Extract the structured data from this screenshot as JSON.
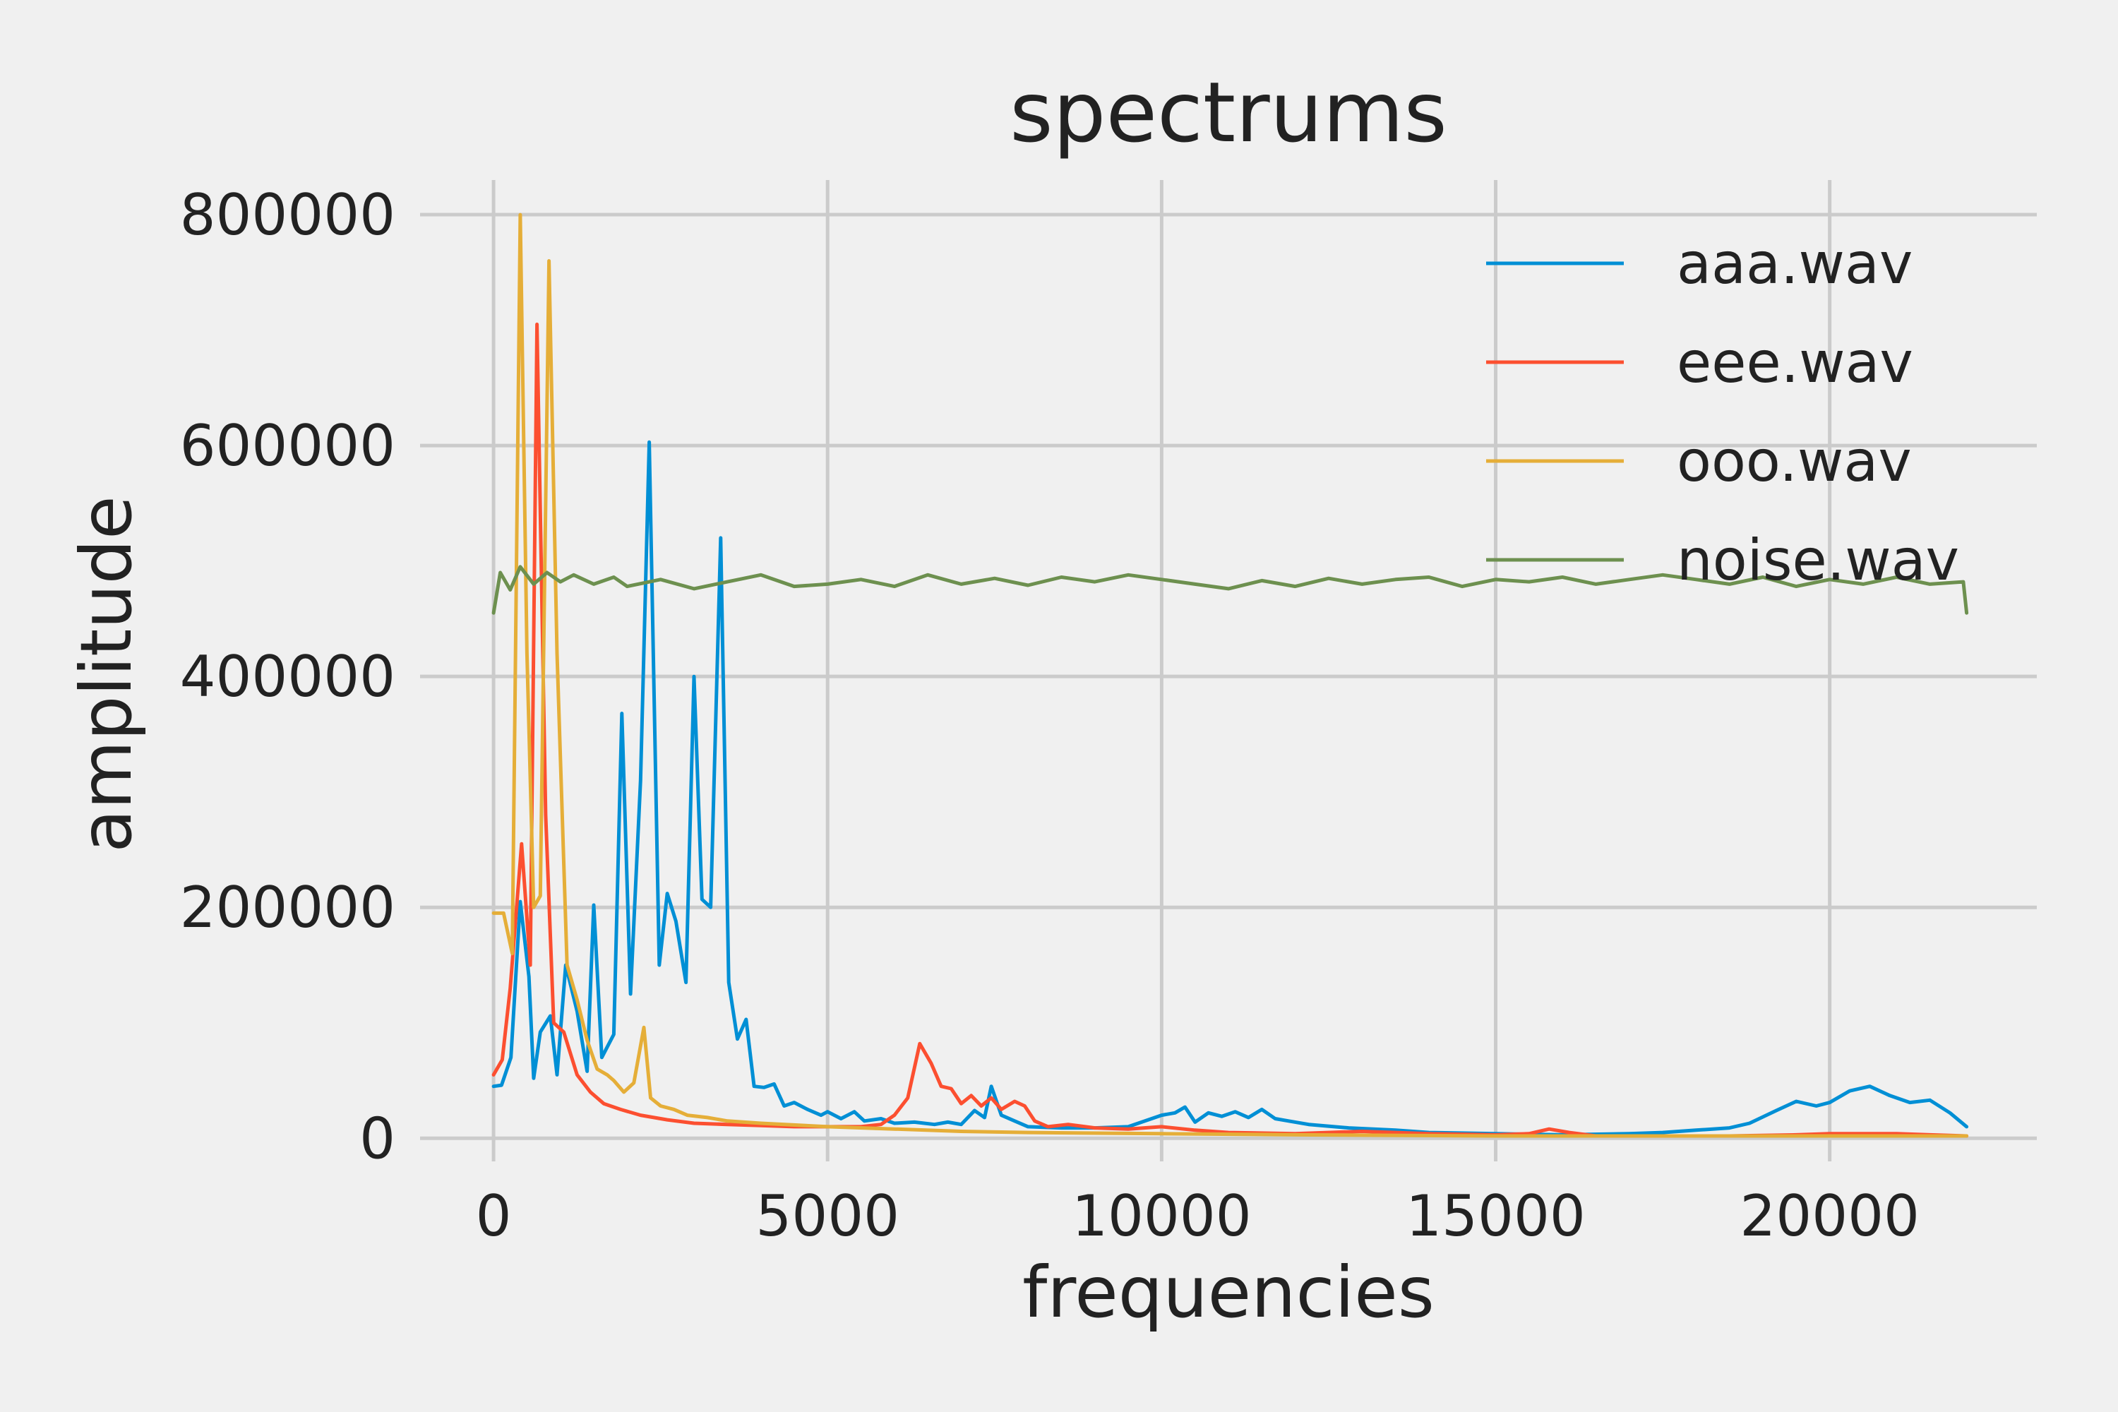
{
  "chart_data": {
    "type": "line",
    "title": "spectrums",
    "xlabel": "frequencies",
    "ylabel": "amplitude",
    "xlim": [
      -1100,
      23100
    ],
    "ylim": [
      -20000,
      830000
    ],
    "xticks": [
      0,
      5000,
      10000,
      15000,
      20000
    ],
    "yticks": [
      0,
      200000,
      400000,
      600000,
      800000
    ],
    "grid": true,
    "legend_position": "top-right",
    "series": [
      {
        "name": "aaa.wav",
        "color": "#008fd5",
        "points": [
          [
            0,
            45000
          ],
          [
            120,
            46000
          ],
          [
            260,
            70000
          ],
          [
            400,
            205000
          ],
          [
            530,
            140000
          ],
          [
            600,
            52000
          ],
          [
            700,
            92000
          ],
          [
            850,
            106000
          ],
          [
            950,
            55000
          ],
          [
            1080,
            150000
          ],
          [
            1250,
            110000
          ],
          [
            1400,
            58000
          ],
          [
            1500,
            202000
          ],
          [
            1620,
            70000
          ],
          [
            1800,
            90000
          ],
          [
            1920,
            368000
          ],
          [
            2050,
            125000
          ],
          [
            2200,
            310000
          ],
          [
            2330,
            603000
          ],
          [
            2480,
            150000
          ],
          [
            2600,
            212000
          ],
          [
            2730,
            188000
          ],
          [
            2880,
            135000
          ],
          [
            3000,
            400000
          ],
          [
            3120,
            207000
          ],
          [
            3250,
            200000
          ],
          [
            3400,
            520000
          ],
          [
            3520,
            135000
          ],
          [
            3650,
            86000
          ],
          [
            3780,
            103000
          ],
          [
            3900,
            45000
          ],
          [
            4050,
            44000
          ],
          [
            4200,
            47000
          ],
          [
            4350,
            28000
          ],
          [
            4500,
            31000
          ],
          [
            4700,
            25000
          ],
          [
            4900,
            20000
          ],
          [
            5000,
            23000
          ],
          [
            5200,
            17000
          ],
          [
            5400,
            23000
          ],
          [
            5550,
            15000
          ],
          [
            5800,
            17000
          ],
          [
            6000,
            13000
          ],
          [
            6300,
            14000
          ],
          [
            6600,
            12000
          ],
          [
            6800,
            14000
          ],
          [
            7000,
            12000
          ],
          [
            7200,
            24000
          ],
          [
            7350,
            18000
          ],
          [
            7450,
            45000
          ],
          [
            7600,
            20000
          ],
          [
            7800,
            15000
          ],
          [
            8000,
            10000
          ],
          [
            8500,
            9000
          ],
          [
            9000,
            9000
          ],
          [
            9500,
            10000
          ],
          [
            10000,
            20000
          ],
          [
            10200,
            22000
          ],
          [
            10350,
            27000
          ],
          [
            10500,
            14000
          ],
          [
            10700,
            22000
          ],
          [
            10900,
            19000
          ],
          [
            11100,
            23000
          ],
          [
            11300,
            18000
          ],
          [
            11500,
            25000
          ],
          [
            11700,
            17000
          ],
          [
            11900,
            15000
          ],
          [
            12200,
            12000
          ],
          [
            12800,
            9000
          ],
          [
            13500,
            7000
          ],
          [
            14000,
            5000
          ],
          [
            15000,
            4000
          ],
          [
            16000,
            3000
          ],
          [
            17000,
            4000
          ],
          [
            17500,
            5000
          ],
          [
            18000,
            7000
          ],
          [
            18500,
            9000
          ],
          [
            18800,
            13000
          ],
          [
            19200,
            24000
          ],
          [
            19500,
            32000
          ],
          [
            19800,
            28000
          ],
          [
            20000,
            31000
          ],
          [
            20300,
            41000
          ],
          [
            20600,
            45000
          ],
          [
            20900,
            37000
          ],
          [
            21200,
            31000
          ],
          [
            21500,
            33000
          ],
          [
            21800,
            22000
          ],
          [
            22050,
            10000
          ]
        ]
      },
      {
        "name": "eee.wav",
        "color": "#fc4f30",
        "points": [
          [
            0,
            55000
          ],
          [
            130,
            68000
          ],
          [
            250,
            130000
          ],
          [
            420,
            255000
          ],
          [
            550,
            150000
          ],
          [
            650,
            705000
          ],
          [
            780,
            280000
          ],
          [
            900,
            100000
          ],
          [
            1050,
            92000
          ],
          [
            1250,
            55000
          ],
          [
            1450,
            40000
          ],
          [
            1650,
            30000
          ],
          [
            1900,
            25000
          ],
          [
            2200,
            20000
          ],
          [
            2600,
            16000
          ],
          [
            3000,
            13000
          ],
          [
            3500,
            12000
          ],
          [
            4000,
            11000
          ],
          [
            4500,
            10000
          ],
          [
            5000,
            10000
          ],
          [
            5500,
            10000
          ],
          [
            5800,
            12000
          ],
          [
            6000,
            20000
          ],
          [
            6200,
            35000
          ],
          [
            6380,
            82000
          ],
          [
            6550,
            65000
          ],
          [
            6700,
            45000
          ],
          [
            6850,
            43000
          ],
          [
            7000,
            30000
          ],
          [
            7150,
            37000
          ],
          [
            7300,
            28000
          ],
          [
            7450,
            35000
          ],
          [
            7600,
            25000
          ],
          [
            7800,
            32000
          ],
          [
            7950,
            28000
          ],
          [
            8100,
            15000
          ],
          [
            8300,
            10000
          ],
          [
            8600,
            12000
          ],
          [
            9000,
            9000
          ],
          [
            9500,
            8000
          ],
          [
            10000,
            10000
          ],
          [
            10500,
            7000
          ],
          [
            11000,
            5000
          ],
          [
            12000,
            4000
          ],
          [
            13000,
            6000
          ],
          [
            13500,
            5000
          ],
          [
            14000,
            4000
          ],
          [
            15000,
            3000
          ],
          [
            15500,
            4000
          ],
          [
            15800,
            8000
          ],
          [
            16100,
            5000
          ],
          [
            16500,
            2000
          ],
          [
            17500,
            2000
          ],
          [
            18500,
            2000
          ],
          [
            19500,
            3000
          ],
          [
            20000,
            4000
          ],
          [
            21000,
            4000
          ],
          [
            21500,
            3000
          ],
          [
            22050,
            2000
          ]
        ]
      },
      {
        "name": "ooo.wav",
        "color": "#e5ae38",
        "points": [
          [
            0,
            195000
          ],
          [
            150,
            195000
          ],
          [
            280,
            160000
          ],
          [
            400,
            800000
          ],
          [
            500,
            420000
          ],
          [
            600,
            200000
          ],
          [
            700,
            210000
          ],
          [
            830,
            760000
          ],
          [
            950,
            420000
          ],
          [
            1100,
            150000
          ],
          [
            1250,
            120000
          ],
          [
            1400,
            85000
          ],
          [
            1550,
            60000
          ],
          [
            1700,
            55000
          ],
          [
            1800,
            50000
          ],
          [
            1950,
            40000
          ],
          [
            2100,
            48000
          ],
          [
            2250,
            96000
          ],
          [
            2350,
            35000
          ],
          [
            2500,
            28000
          ],
          [
            2700,
            25000
          ],
          [
            2900,
            20000
          ],
          [
            3200,
            18000
          ],
          [
            3500,
            15000
          ],
          [
            4000,
            13000
          ],
          [
            5000,
            10000
          ],
          [
            6000,
            8000
          ],
          [
            7000,
            6000
          ],
          [
            8000,
            5000
          ],
          [
            10000,
            4000
          ],
          [
            12000,
            3000
          ],
          [
            15000,
            2000
          ],
          [
            18000,
            2000
          ],
          [
            20000,
            2000
          ],
          [
            22050,
            2000
          ]
        ]
      },
      {
        "name": "noise.wav",
        "color": "#6d904f",
        "points": [
          [
            0,
            455000
          ],
          [
            100,
            490000
          ],
          [
            250,
            475000
          ],
          [
            400,
            495000
          ],
          [
            600,
            480000
          ],
          [
            800,
            490000
          ],
          [
            1000,
            482000
          ],
          [
            1200,
            488000
          ],
          [
            1500,
            480000
          ],
          [
            1800,
            486000
          ],
          [
            2000,
            478000
          ],
          [
            2500,
            484000
          ],
          [
            3000,
            476000
          ],
          [
            3500,
            482000
          ],
          [
            4000,
            488000
          ],
          [
            4500,
            478000
          ],
          [
            5000,
            480000
          ],
          [
            5500,
            484000
          ],
          [
            6000,
            478000
          ],
          [
            6500,
            488000
          ],
          [
            7000,
            480000
          ],
          [
            7500,
            485000
          ],
          [
            8000,
            479000
          ],
          [
            8500,
            486000
          ],
          [
            9000,
            482000
          ],
          [
            9500,
            488000
          ],
          [
            10000,
            484000
          ],
          [
            10500,
            480000
          ],
          [
            11000,
            476000
          ],
          [
            11500,
            483000
          ],
          [
            12000,
            478000
          ],
          [
            12500,
            485000
          ],
          [
            13000,
            480000
          ],
          [
            13500,
            484000
          ],
          [
            14000,
            486000
          ],
          [
            14500,
            478000
          ],
          [
            15000,
            484000
          ],
          [
            15500,
            482000
          ],
          [
            16000,
            486000
          ],
          [
            16500,
            480000
          ],
          [
            17000,
            484000
          ],
          [
            17500,
            488000
          ],
          [
            18000,
            484000
          ],
          [
            18500,
            480000
          ],
          [
            19000,
            486000
          ],
          [
            19500,
            478000
          ],
          [
            20000,
            484000
          ],
          [
            20500,
            480000
          ],
          [
            21000,
            486000
          ],
          [
            21500,
            480000
          ],
          [
            22000,
            482000
          ],
          [
            22050,
            455000
          ]
        ]
      }
    ]
  }
}
